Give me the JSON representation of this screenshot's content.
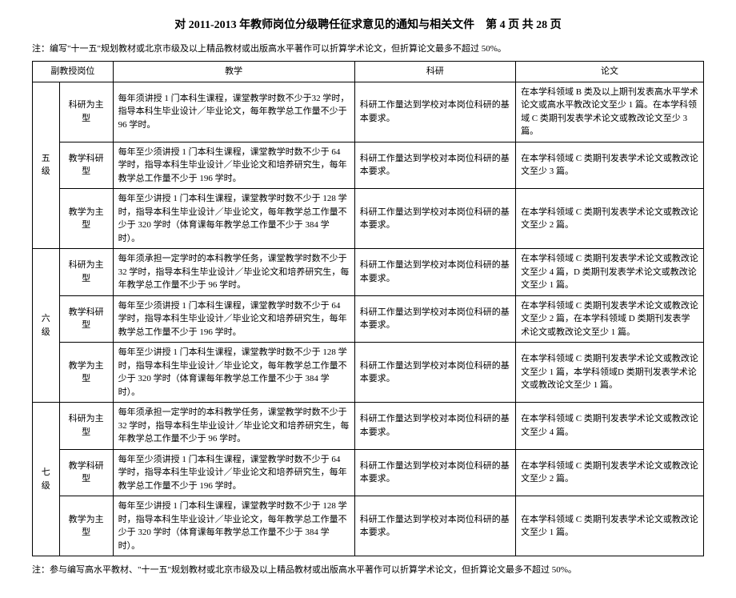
{
  "title": "对 2011-2013 年教师岗位分级聘任征求意见的通知与相关文件　第 4 页 共 28 页",
  "note_top": "注：编写\"十一五\"规划教材或北京市级及以上精品教材或出版高水平著作可以折算学术论文，但折算论文最多不超过 50%。",
  "note_bottom": "注：参与编写高水平教材、\"十一五\"规划教材或北京市级及以上精品教材或出版高水平著作可以折算学术论文，但折算论文最多不超过 50%。",
  "headers": {
    "position": "副教授岗位",
    "teaching": "教学",
    "research": "科研",
    "paper": "论文"
  },
  "levels": [
    {
      "label": "五级",
      "rows": [
        {
          "type": "科研为主型",
          "teaching": "每年须讲授 1 门本科生课程，课堂教学时数不少于32 学时，指导本科生毕业设计／毕业论文，每年教学总工作量不少于 96 学时。",
          "research": "科研工作量达到学校对本岗位科研的基本要求。",
          "paper": "在本学科领域 B 类及以上期刊发表高水平学术论文或高水平教改论文至少 1 篇。在本学科领域 C 类期刊发表学术论文或教改论文至少 3 篇。"
        },
        {
          "type": "教学科研型",
          "teaching": "每年至少须讲授 1 门本科生课程，课堂教学时数不少于 64 学时，指导本科生毕业设计／毕业论文和培养研究生，每年教学总工作量不少于 196 学时。",
          "research": "科研工作量达到学校对本岗位科研的基本要求。",
          "paper": "在本学科领域 C 类期刊发表学术论文或教改论文至少 3 篇。"
        },
        {
          "type": "教学为主型",
          "teaching": "每年至少讲授 1 门本科生课程，课堂教学时数不少于 128 学时，指导本科生毕业设计／毕业论文，每年教学总工作量不少于 320 学时（体育课每年教学总工作量不少于 384 学时）。",
          "research": "科研工作量达到学校对本岗位科研的基本要求。",
          "paper": "在本学科领域 C 类期刊发表学术论文或教改论文至少 2 篇。"
        }
      ]
    },
    {
      "label": "六级",
      "rows": [
        {
          "type": "科研为主型",
          "teaching": "每年须承担一定学时的本科教学任务，课堂教学时数不少于 32 学时，指导本科生毕业设计／毕业论文和培养研究生，每年教学总工作量不少于 96 学时。",
          "research": "科研工作量达到学校对本岗位科研的基本要求。",
          "paper": "在本学科领域 C 类期刊发表学术论文或教改论文至少 4 篇，D 类期刊发表学术论文或教改论文至少 1 篇。"
        },
        {
          "type": "教学科研型",
          "teaching": "每年至少须讲授 1 门本科生课程，课堂教学时数不少于 64 学时，指导本科生毕业设计／毕业论文和培养研究生，每年教学总工作量不少于 196 学时。",
          "research": "科研工作量达到学校对本岗位科研的基本要求。",
          "paper": "在本学科领域 C 类期刊发表学术论文或教改论文至少 2 篇，在本学科领域 D 类期刊发表学术论文或教改论文至少 1 篇。"
        },
        {
          "type": "教学为主型",
          "teaching": "每年至少讲授 1 门本科生课程，课堂教学时数不少于 128 学时，指导本科生毕业设计／毕业论文，每年教学总工作量不少于 320 学时（体育课每年教学总工作量不少于 384 学时）。",
          "research": "科研工作量达到学校对本岗位科研的基本要求。",
          "paper": "在本学科领域 C 类期刊发表学术论文或教改论文至少 1 篇，本学科领域D 类期刊发表学术论文或教改论文至少 1 篇。"
        }
      ]
    },
    {
      "label": "七级",
      "rows": [
        {
          "type": "科研为主型",
          "teaching": "每年须承担一定学时的本科教学任务，课堂教学时数不少于 32 学时，指导本科生毕业设计／毕业论文和培养研究生，每年教学总工作量不少于 96 学时。",
          "research": "科研工作量达到学校对本岗位科研的基本要求。",
          "paper": "在本学科领域 C 类期刊发表学术论文或教改论文至少 4 篇。"
        },
        {
          "type": "教学科研型",
          "teaching": "每年至少须讲授 1 门本科生课程，课堂教学时数不少于 64 学时，指导本科生毕业设计／毕业论文和培养研究生，每年教学总工作量不少于 196 学时。",
          "research": "科研工作量达到学校对本岗位科研的基本要求。",
          "paper": "在本学科领域 C 类期刊发表学术论文或教改论文至少 2 篇。"
        },
        {
          "type": "教学为主型",
          "teaching": "每年至少讲授 1 门本科生课程，课堂教学时数不少于 128 学时，指导本科生毕业设计／毕业论文，每年教学总工作量不少于 320 学时（体育课每年教学总工作量不少于 384 学时）。",
          "research": "科研工作量达到学校对本岗位科研的基本要求。",
          "paper": "在本学科领域 C 类期刊发表学术论文或教改论文至少 1 篇。"
        }
      ]
    }
  ]
}
